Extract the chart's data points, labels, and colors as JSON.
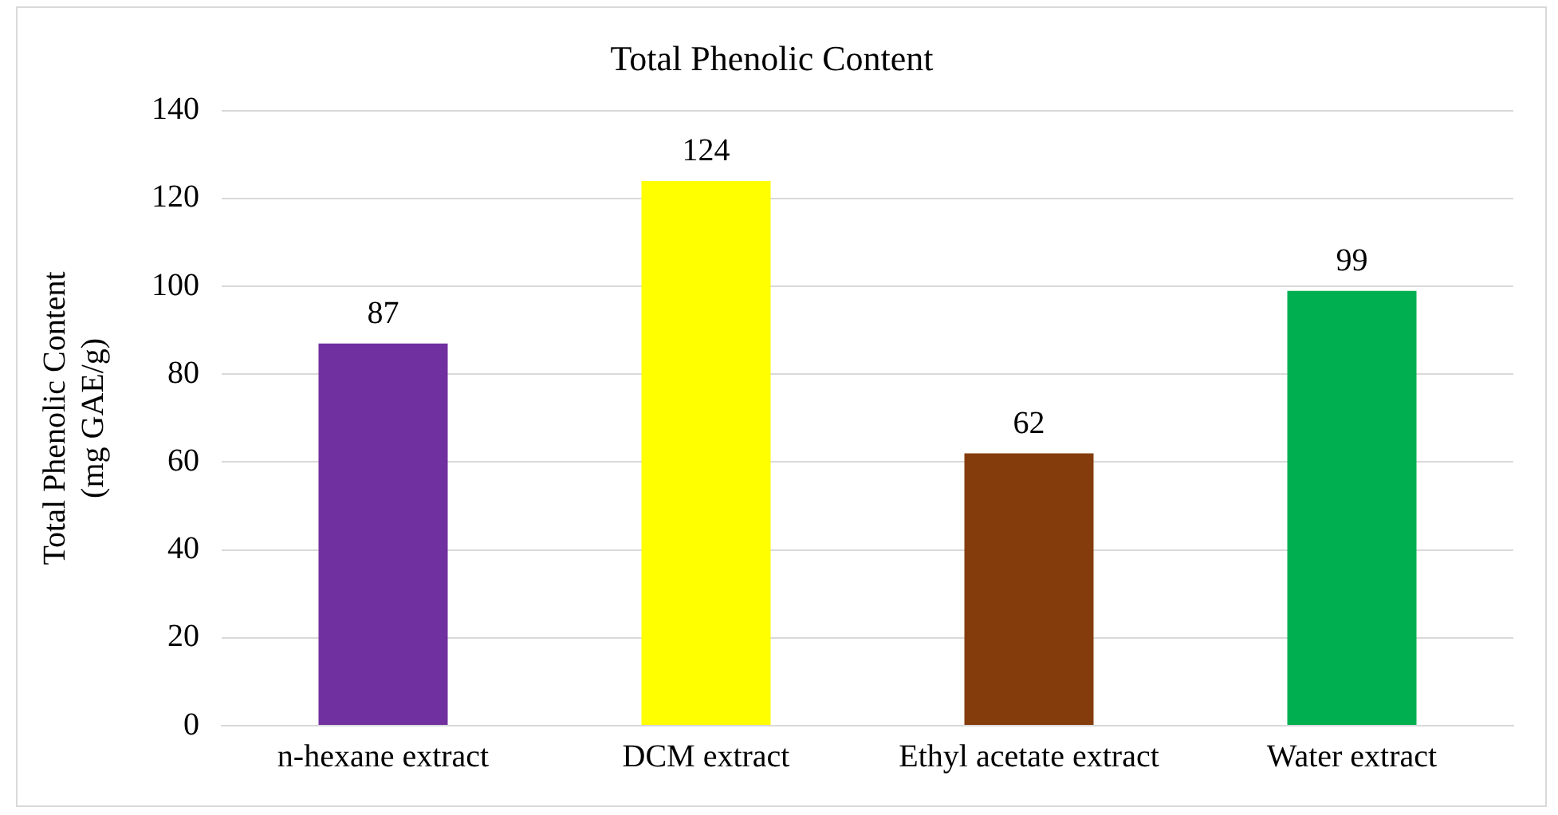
{
  "chart_data": {
    "type": "bar",
    "title": "Total Phenolic Content",
    "ylabel": "Total Phenolic Content\n(mg GAE/g)",
    "categories": [
      "n-hexane extract",
      "DCM extract",
      "Ethyl acetate extract",
      "Water extract"
    ],
    "values": [
      87,
      124,
      62,
      99
    ],
    "colors": [
      "#7030a0",
      "#ffff00",
      "#843c0c",
      "#00b050"
    ],
    "ylim": [
      0,
      140
    ],
    "yticks": [
      0,
      20,
      40,
      60,
      80,
      100,
      120,
      140
    ],
    "grid": "y",
    "data_labels": true,
    "legend": false
  }
}
